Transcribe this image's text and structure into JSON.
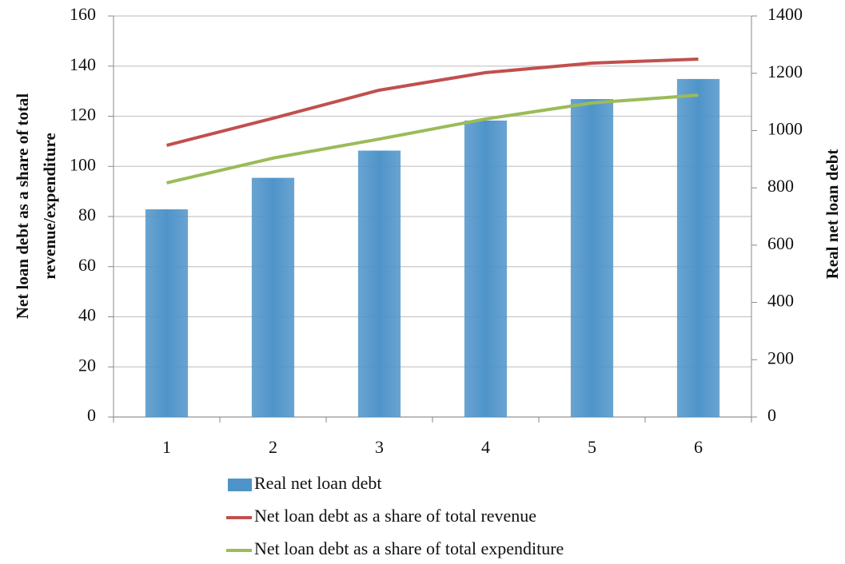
{
  "chart_data": {
    "type": "combo",
    "categories": [
      "1",
      "2",
      "3",
      "4",
      "5",
      "6"
    ],
    "series": [
      {
        "name": "Real net loan debt",
        "type": "bar",
        "axis": "y2",
        "color": "#4f94c9",
        "values": [
          725,
          835,
          930,
          1035,
          1110,
          1180
        ]
      },
      {
        "name": "Net loan debt as a share of total revenue",
        "type": "line",
        "color": "#c0504d",
        "values": [
          108.4,
          119.2,
          130.4,
          137.4,
          141.2,
          142.8
        ]
      },
      {
        "name": "Net loan debt as a share of total expenditure",
        "type": "line",
        "color": "#9bbb59",
        "values": [
          93.4,
          103.3,
          110.9,
          118.9,
          125.3,
          128.4
        ]
      }
    ],
    "y_label": [
      "Net loan debt as a share of total",
      "revenue/expenditure"
    ],
    "y2_label": "Real net loan debt",
    "ylim": [
      0,
      160
    ],
    "yticks": [
      0,
      20,
      40,
      60,
      80,
      100,
      120,
      140,
      160
    ],
    "y2lim": [
      0,
      1400
    ],
    "y2ticks": [
      0,
      200,
      400,
      600,
      800,
      1000,
      1200,
      1400
    ],
    "grid": true,
    "legend": "bottom"
  }
}
